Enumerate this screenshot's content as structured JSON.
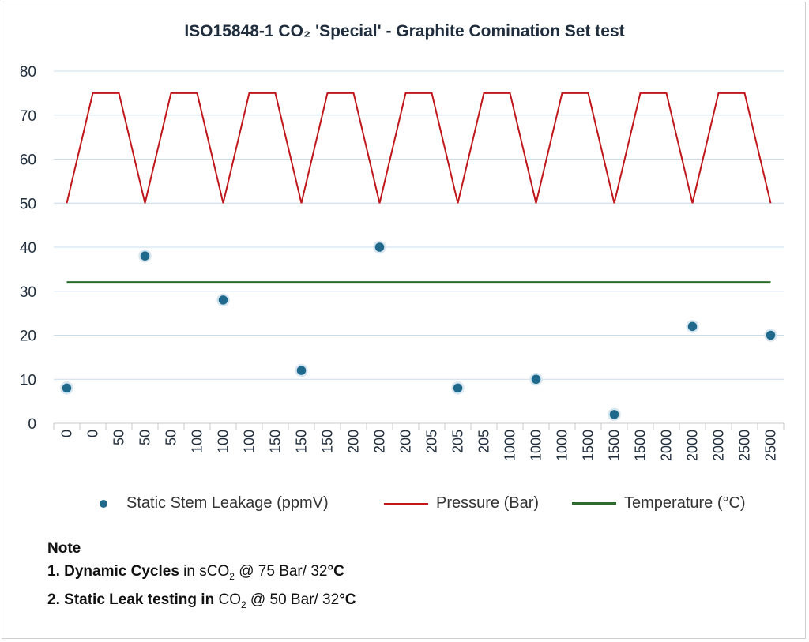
{
  "title": "ISO15848-1 CO₂ 'Special' - Graphite Comination Set test",
  "chart_data": {
    "type": "line",
    "title": "ISO15848-1 CO₂ 'Special' - Graphite Comination Set test",
    "categories": [
      "0",
      "0",
      "50",
      "50",
      "50",
      "100",
      "100",
      "100",
      "150",
      "150",
      "150",
      "200",
      "200",
      "200",
      "205",
      "205",
      "205",
      "1000",
      "1000",
      "1000",
      "1500",
      "1500",
      "1500",
      "2000",
      "2000",
      "2000",
      "2500",
      "2500"
    ],
    "ylim": [
      0,
      80
    ],
    "yticks": [
      0,
      10,
      20,
      30,
      40,
      50,
      60,
      70,
      80
    ],
    "grid": true,
    "legend_position": "bottom",
    "series": [
      {
        "name": "Static Stem Leakage (ppmV)",
        "type": "scatter",
        "color": "#1f6a8c",
        "points": [
          {
            "index": 0,
            "value": 8
          },
          {
            "index": 3,
            "value": 38
          },
          {
            "index": 6,
            "value": 28
          },
          {
            "index": 9,
            "value": 12
          },
          {
            "index": 12,
            "value": 40
          },
          {
            "index": 15,
            "value": 8
          },
          {
            "index": 18,
            "value": 10
          },
          {
            "index": 21,
            "value": 2
          },
          {
            "index": 24,
            "value": 22
          },
          {
            "index": 27,
            "value": 20
          }
        ]
      },
      {
        "name": "Pressure (Bar)",
        "type": "line",
        "color": "#c0171b",
        "values": [
          50,
          75,
          75,
          50,
          75,
          75,
          50,
          75,
          75,
          50,
          75,
          75,
          50,
          75,
          75,
          50,
          75,
          75,
          50,
          75,
          75,
          50,
          75,
          75,
          50,
          75,
          75,
          50
        ]
      },
      {
        "name": "Temperature (°C)",
        "type": "line",
        "color": "#2e6b2e",
        "values": [
          32,
          32,
          32,
          32,
          32,
          32,
          32,
          32,
          32,
          32,
          32,
          32,
          32,
          32,
          32,
          32,
          32,
          32,
          32,
          32,
          32,
          32,
          32,
          32,
          32,
          32,
          32,
          32
        ]
      }
    ]
  },
  "note": {
    "heading": "Note",
    "line1_num": "1.",
    "line1_bold": "Dynamic Cycles",
    "line1_pre": "in sCO",
    "line1_sub": "2",
    "line1_post": " @ 75 Bar/ 32",
    "line1_unit": "°C",
    "line2_num": "2.",
    "line2_bold": "Static Leak testing  in",
    "line2_pre": "CO",
    "line2_sub": "2",
    "line2_post": " @ 50 Bar/ 32",
    "line2_unit": "°C"
  }
}
